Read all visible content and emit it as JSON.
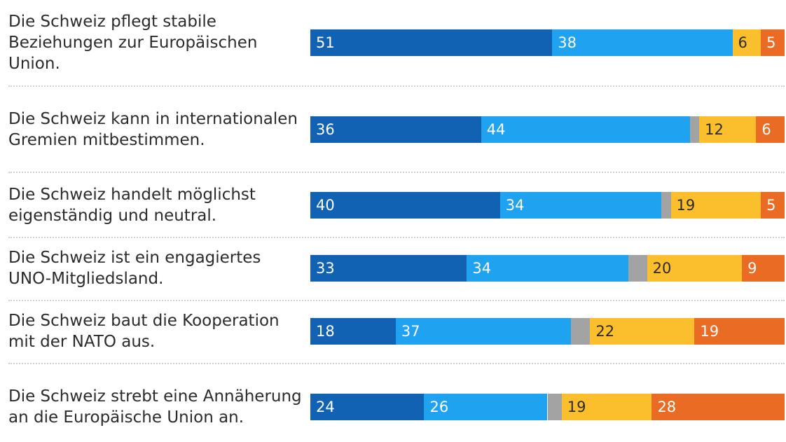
{
  "chart_data": {
    "type": "bar",
    "orientation": "horizontal",
    "stacked": true,
    "categories": [
      "Die Schweiz pflegt stabile Beziehungen zur Europäischen Union.",
      "Die Schweiz kann in internationalen Gremien mitbestimmen.",
      "Die Schweiz handelt möglichst eigenständig und neutral.",
      "Die Schweiz ist ein engagiertes UNO-Mitgliedsland.",
      "Die Schweiz baut die Kooperation mit der NATO aus.",
      "Die Schweiz strebt eine Annäherung an die Europäische Union an."
    ],
    "series": [
      {
        "color": "#1162b3",
        "values": [
          51,
          36,
          40,
          33,
          18,
          24
        ]
      },
      {
        "color": "#1fa2ef",
        "values": [
          38,
          44,
          34,
          34,
          37,
          26
        ]
      },
      {
        "color": "#a3a3a3",
        "values": [
          0,
          2,
          2,
          4,
          4,
          3
        ],
        "labels_shown": false
      },
      {
        "color": "#fbbf2d",
        "values": [
          6,
          12,
          19,
          20,
          22,
          19
        ]
      },
      {
        "color": "#ea6b23",
        "values": [
          5,
          6,
          5,
          9,
          19,
          28
        ]
      }
    ],
    "xlim": [
      0,
      100
    ]
  }
}
